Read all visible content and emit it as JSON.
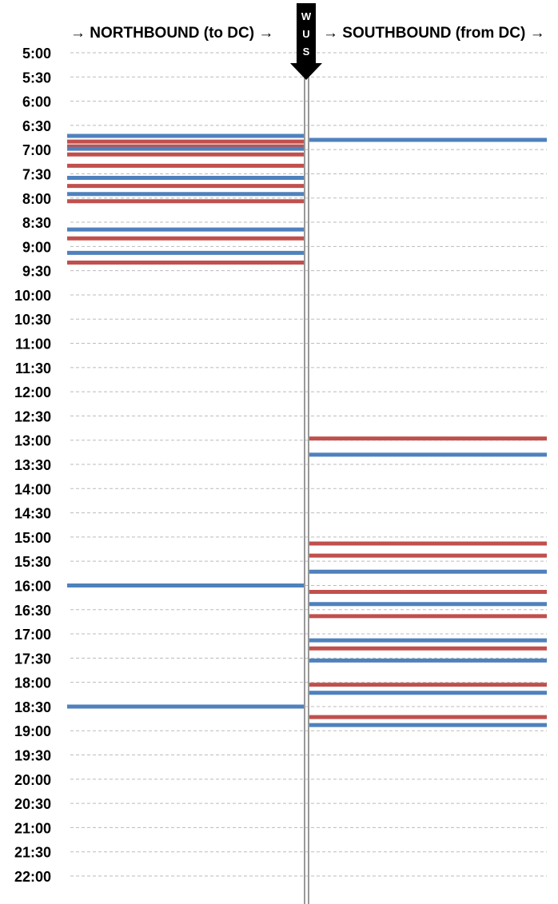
{
  "chart_data": {
    "type": "timeline",
    "header_left": "→ NORTHBOUND (to DC) →",
    "header_right": "→ SOUTHBOUND (from DC) →",
    "station_marker": [
      "W",
      "U",
      "S"
    ],
    "y_ticks": [
      "5:00",
      "5:30",
      "6:00",
      "6:30",
      "7:00",
      "7:30",
      "8:00",
      "8:30",
      "9:00",
      "9:30",
      "10:00",
      "10:30",
      "11:00",
      "11:30",
      "12:00",
      "12:30",
      "13:00",
      "13:30",
      "14:00",
      "14:30",
      "15:00",
      "15:30",
      "16:00",
      "16:30",
      "17:00",
      "17:30",
      "18:00",
      "18:30",
      "19:00",
      "19:30",
      "20:00",
      "20:30",
      "21:00",
      "21:30",
      "22:00"
    ],
    "ylim": [
      "5:00",
      "22:00"
    ],
    "grid": true,
    "colors": {
      "blue": "#4f81bd",
      "red": "#c0504d",
      "grid": "#bbbbbb",
      "center": "#999999"
    },
    "series": [
      {
        "direction": "northbound",
        "trains": [
          {
            "time": "6:43",
            "color": "blue"
          },
          {
            "time": "6:50",
            "color": "red"
          },
          {
            "time": "6:56",
            "color": "red"
          },
          {
            "time": "6:59",
            "color": "blue"
          },
          {
            "time": "7:06",
            "color": "red"
          },
          {
            "time": "7:20",
            "color": "red"
          },
          {
            "time": "7:35",
            "color": "blue"
          },
          {
            "time": "7:45",
            "color": "red"
          },
          {
            "time": "7:55",
            "color": "blue"
          },
          {
            "time": "8:04",
            "color": "red"
          },
          {
            "time": "8:39",
            "color": "blue"
          },
          {
            "time": "8:50",
            "color": "red"
          },
          {
            "time": "9:08",
            "color": "blue"
          },
          {
            "time": "9:20",
            "color": "red"
          },
          {
            "time": "16:00",
            "color": "blue"
          },
          {
            "time": "18:30",
            "color": "blue"
          }
        ]
      },
      {
        "direction": "southbound",
        "trains": [
          {
            "time": "6:48",
            "color": "blue"
          },
          {
            "time": "12:58",
            "color": "red"
          },
          {
            "time": "13:18",
            "color": "blue"
          },
          {
            "time": "15:08",
            "color": "red"
          },
          {
            "time": "15:23",
            "color": "red"
          },
          {
            "time": "15:43",
            "color": "blue"
          },
          {
            "time": "16:08",
            "color": "red"
          },
          {
            "time": "16:23",
            "color": "blue"
          },
          {
            "time": "16:38",
            "color": "red"
          },
          {
            "time": "17:08",
            "color": "blue"
          },
          {
            "time": "17:18",
            "color": "red"
          },
          {
            "time": "17:33",
            "color": "blue"
          },
          {
            "time": "18:03",
            "color": "red"
          },
          {
            "time": "18:13",
            "color": "blue"
          },
          {
            "time": "18:43",
            "color": "red"
          },
          {
            "time": "18:53",
            "color": "blue"
          }
        ]
      }
    ]
  }
}
